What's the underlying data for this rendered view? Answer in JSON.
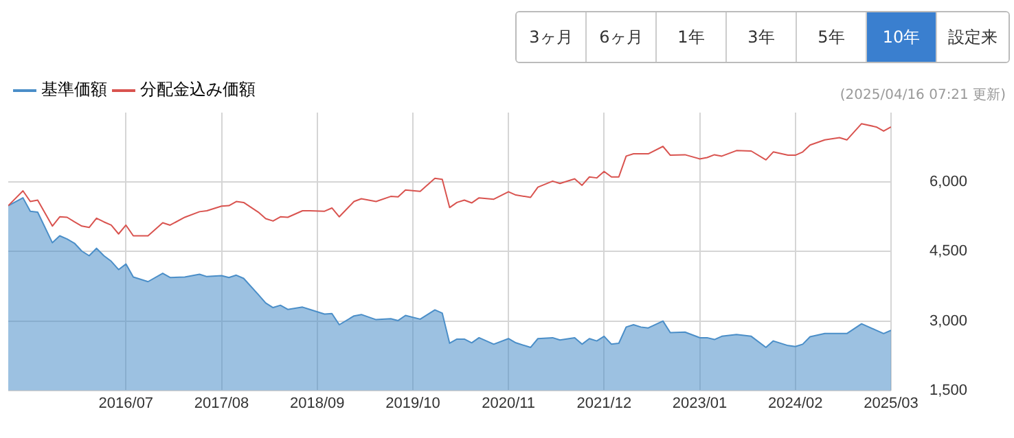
{
  "chart_data": {
    "type": "area",
    "legend": "top left",
    "grid": true,
    "marker": "none",
    "annotations": [
      "3ヶ月",
      "6ヶ月",
      "1年",
      "3年",
      "5年",
      "10年",
      "設定来",
      "(2025/04/16 07:21 更新)"
    ],
    "x": [
      "2015-03",
      "2015-05",
      "2015-06",
      "2015-07",
      "2015-09",
      "2015-10",
      "2015-11",
      "2015-12",
      "2016-01",
      "2016-02",
      "2016-03",
      "2016-04",
      "2016-05",
      "2016-06",
      "2016-07",
      "2016-08",
      "2016-10",
      "2016-12",
      "2017-01",
      "2017-03",
      "2017-05",
      "2017-06",
      "2017-08",
      "2017-09",
      "2017-10",
      "2017-11",
      "2018-01",
      "2018-02",
      "2018-03",
      "2018-04",
      "2018-05",
      "2018-07",
      "2018-08",
      "2018-10",
      "2018-11",
      "2018-12",
      "2019-02",
      "2019-03",
      "2019-05",
      "2019-07",
      "2019-08",
      "2019-09",
      "2019-11",
      "2020-01",
      "2020-02",
      "2020-03",
      "2020-04",
      "2020-05",
      "2020-06",
      "2020-07",
      "2020-09",
      "2020-11",
      "2020-12",
      "2021-02",
      "2021-03",
      "2021-05",
      "2021-06",
      "2021-08",
      "2021-09",
      "2021-10",
      "2021-11",
      "2021-12",
      "2022-01",
      "2022-02",
      "2022-03",
      "2022-04",
      "2022-05",
      "2022-06",
      "2022-08",
      "2022-09",
      "2022-11",
      "2023-01",
      "2023-02",
      "2023-03",
      "2023-04",
      "2023-06",
      "2023-08",
      "2023-10",
      "2023-11",
      "2024-01",
      "2024-02",
      "2024-03",
      "2024-04",
      "2024-06",
      "2024-08",
      "2024-09",
      "2024-11",
      "2025-01",
      "2025-02",
      "2025-03"
    ],
    "series": [
      {
        "name": "基準価額",
        "color": "#4a8ec8",
        "values": [
          5490,
          5660,
          5370,
          5350,
          4690,
          4840,
          4770,
          4680,
          4510,
          4410,
          4570,
          4410,
          4290,
          4110,
          4230,
          3950,
          3850,
          4030,
          3940,
          3950,
          4010,
          3960,
          3980,
          3940,
          3990,
          3920,
          3570,
          3390,
          3290,
          3340,
          3250,
          3300,
          3250,
          3150,
          3160,
          2920,
          3110,
          3140,
          3030,
          3050,
          3010,
          3120,
          3040,
          3240,
          3170,
          2520,
          2610,
          2610,
          2530,
          2640,
          2500,
          2620,
          2530,
          2430,
          2620,
          2640,
          2590,
          2640,
          2500,
          2620,
          2570,
          2670,
          2500,
          2520,
          2870,
          2920,
          2870,
          2850,
          3000,
          2750,
          2760,
          2640,
          2640,
          2600,
          2670,
          2710,
          2670,
          2430,
          2570,
          2470,
          2450,
          2500,
          2660,
          2730,
          2730,
          2730,
          2940,
          2800,
          2730,
          2800
        ]
      },
      {
        "name": "分配金込み価額",
        "type": "line",
        "color": "#d9534f",
        "values": [
          5490,
          5810,
          5580,
          5610,
          5050,
          5250,
          5240,
          5140,
          5050,
          5020,
          5220,
          5140,
          5070,
          4880,
          5070,
          4840,
          4840,
          5120,
          5070,
          5240,
          5360,
          5380,
          5480,
          5490,
          5580,
          5560,
          5350,
          5210,
          5160,
          5250,
          5240,
          5380,
          5380,
          5370,
          5440,
          5250,
          5580,
          5640,
          5580,
          5690,
          5680,
          5830,
          5800,
          6080,
          6060,
          5450,
          5560,
          5610,
          5550,
          5660,
          5630,
          5790,
          5720,
          5670,
          5890,
          6020,
          5970,
          6070,
          5930,
          6110,
          6090,
          6230,
          6110,
          6110,
          6560,
          6610,
          6610,
          6610,
          6770,
          6580,
          6590,
          6500,
          6530,
          6590,
          6560,
          6680,
          6670,
          6480,
          6650,
          6580,
          6580,
          6650,
          6800,
          6910,
          6960,
          6910,
          7260,
          7190,
          7100,
          7190
        ]
      }
    ],
    "xlim": [
      "2015-03",
      "2025-03"
    ],
    "xticks": [
      {
        "value": "2016-07",
        "label": "2016/07"
      },
      {
        "value": "2017-08",
        "label": "2017/08"
      },
      {
        "value": "2018-09",
        "label": "2018/09"
      },
      {
        "value": "2019-10",
        "label": "2019/10"
      },
      {
        "value": "2020-11",
        "label": "2020/11"
      },
      {
        "value": "2021-12",
        "label": "2021/12"
      },
      {
        "value": "2023-01",
        "label": "2023/01"
      },
      {
        "value": "2024-02",
        "label": "2024/02"
      },
      {
        "value": "2025-03",
        "label": "2025/03"
      }
    ],
    "ylim": [
      1500,
      7500
    ],
    "yticks": [
      {
        "value": 1500,
        "label": "1,500"
      },
      {
        "value": 3000,
        "label": "3,000"
      },
      {
        "value": 4500,
        "label": "4,500"
      },
      {
        "value": 6000,
        "label": "6,000"
      }
    ]
  }
}
